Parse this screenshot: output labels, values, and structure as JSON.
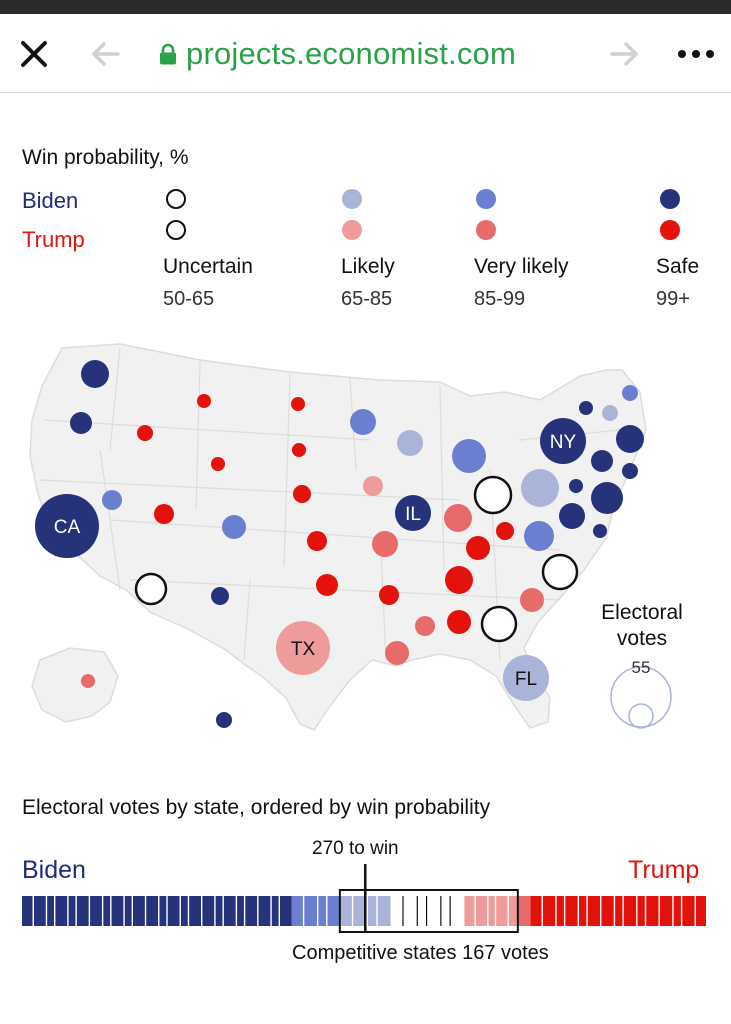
{
  "browser": {
    "url": "projects.economist.com",
    "icons": [
      "close-icon",
      "back-arrow-icon",
      "lock-icon",
      "forward-arrow-icon",
      "more-icon"
    ]
  },
  "legend": {
    "title": "Win probability, %",
    "biden_label": "Biden",
    "trump_label": "Trump",
    "categories": [
      {
        "name": "Uncertain",
        "range": "50-65"
      },
      {
        "name": "Likely",
        "range": "65-85"
      },
      {
        "name": "Very likely",
        "range": "85-99"
      },
      {
        "name": "Safe",
        "range": "99+"
      }
    ]
  },
  "colors": {
    "biden": [
      "#ffffff",
      "#aab4d9",
      "#6a7fd0",
      "#26327a"
    ],
    "trump": [
      "#ffffff",
      "#ee9b9b",
      "#e86b6b",
      "#e3120b"
    ],
    "map_land": "#f2f2f2",
    "map_border": "#dadada"
  },
  "map": {
    "labeled_states": [
      "CA",
      "NY",
      "IL",
      "TX",
      "FL"
    ],
    "size_legend_title": "Electoral votes",
    "size_legend_value": "55"
  },
  "chart_data": {
    "type": "bar",
    "title": "Electoral votes by state, ordered by win probability",
    "left_label": "Biden",
    "right_label": "Trump",
    "threshold_label": "270 to win",
    "threshold": 270,
    "total": 538,
    "competitive_label": "Competitive states 167 votes",
    "competitive_votes": 167,
    "segments": [
      {
        "category": "Biden Safe",
        "votes": 212
      },
      {
        "category": "Biden Very likely",
        "votes": 38
      },
      {
        "category": "Biden Likely",
        "votes": 40
      },
      {
        "category": "Uncertain",
        "votes": 58
      },
      {
        "category": "Trump Likely",
        "votes": 42
      },
      {
        "category": "Trump Very likely",
        "votes": 10
      },
      {
        "category": "Trump Safe",
        "votes": 138
      }
    ]
  }
}
